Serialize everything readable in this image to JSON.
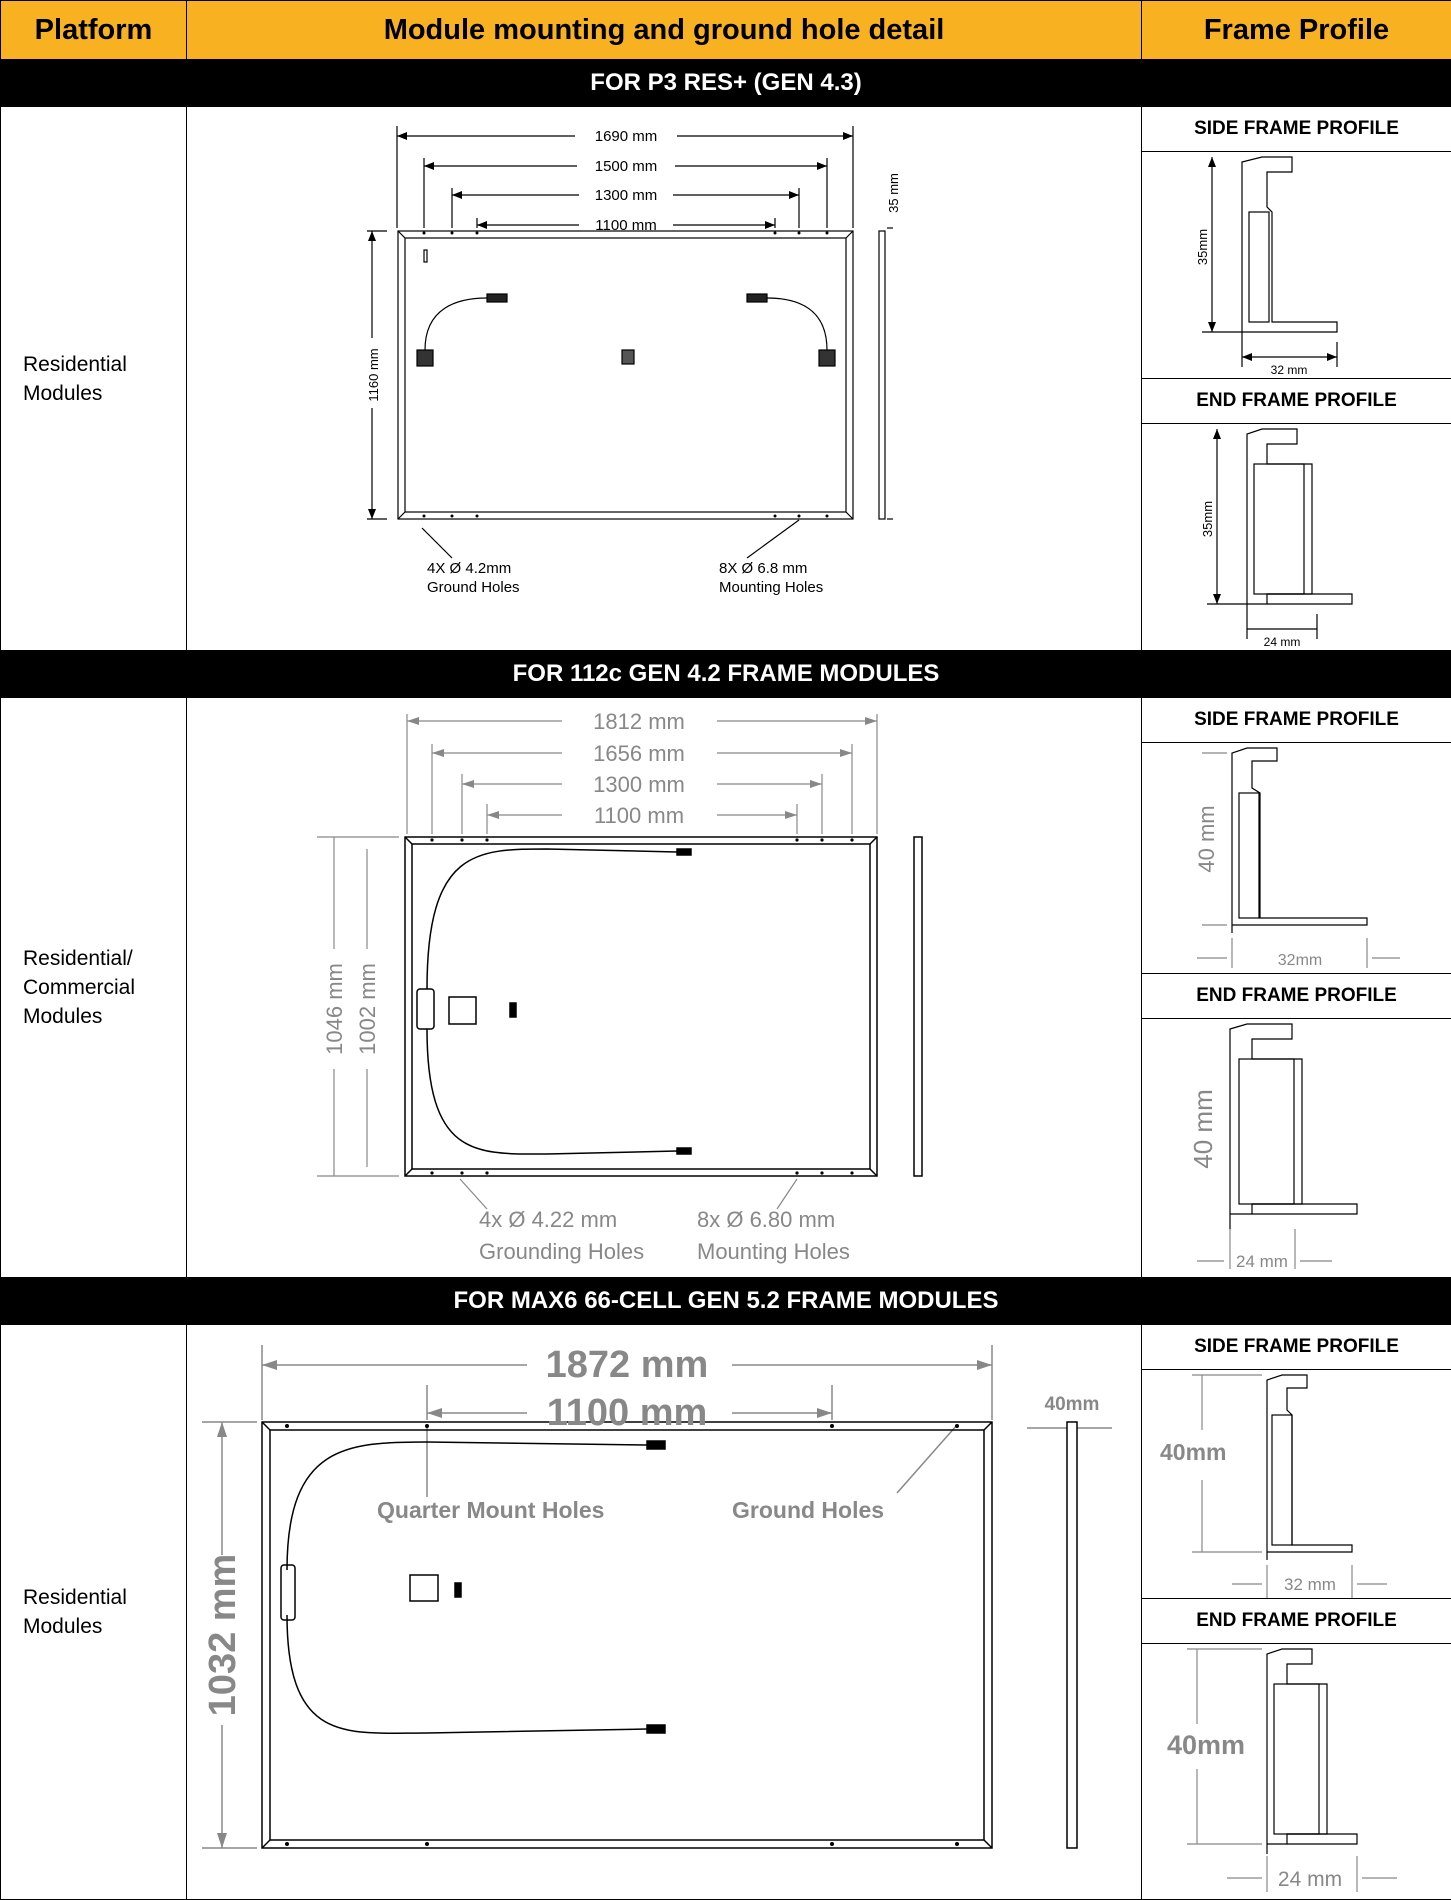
{
  "header": {
    "platform": "Platform",
    "detail": "Module mounting and ground hole detail",
    "profile": "Frame Profile"
  },
  "sections": [
    {
      "band": "FOR P3 RES+ (GEN 4.3)",
      "platform_lines": [
        "Residential",
        "Modules"
      ],
      "dims": {
        "d1": "1690 mm",
        "d2": "1500 mm",
        "d3": "1300 mm",
        "d4": "1100 mm",
        "height": "1160 mm",
        "thick": "35 mm"
      },
      "notes": {
        "a1": "4X Ø 4.2mm",
        "a2": "Ground Holes",
        "b1": "8X Ø 6.8 mm",
        "b2": "Mounting Holes"
      },
      "side": {
        "title": "SIDE FRAME PROFILE",
        "h": "35mm",
        "w": "32 mm"
      },
      "end": {
        "title": "END FRAME PROFILE",
        "h": "35mm",
        "w": "24 mm"
      }
    },
    {
      "band": "FOR 112c GEN 4.2 FRAME MODULES",
      "platform_lines": [
        "Residential/",
        "Commercial",
        "Modules"
      ],
      "dims": {
        "d1": "1812 mm",
        "d2": "1656 mm",
        "d3": "1300 mm",
        "d4": "1100 mm",
        "h1": "1046 mm",
        "h2": "1002 mm"
      },
      "notes": {
        "a1": "4x Ø 4.22 mm",
        "a2": "Grounding Holes",
        "b1": "8x Ø 6.80 mm",
        "b2": "Mounting Holes"
      },
      "side": {
        "title": "SIDE FRAME PROFILE",
        "h": "40 mm",
        "w": "32mm"
      },
      "end": {
        "title": "END FRAME PROFILE",
        "h": "40 mm",
        "w": "24 mm"
      }
    },
    {
      "band": "FOR MAX6 66-CELL GEN 5.2 FRAME MODULES",
      "platform_lines": [
        "Residential",
        "Modules"
      ],
      "dims": {
        "d1": "1872 mm",
        "d2": "1100 mm",
        "height": "1032 mm",
        "thick": "40mm"
      },
      "notes": {
        "a": "Quarter Mount Holes",
        "b": "Ground Holes"
      },
      "side": {
        "title": "SIDE FRAME PROFILE",
        "h": "40mm",
        "w": "32 mm"
      },
      "end": {
        "title": "END FRAME PROFILE",
        "h": "40mm",
        "w": "24 mm"
      }
    }
  ]
}
